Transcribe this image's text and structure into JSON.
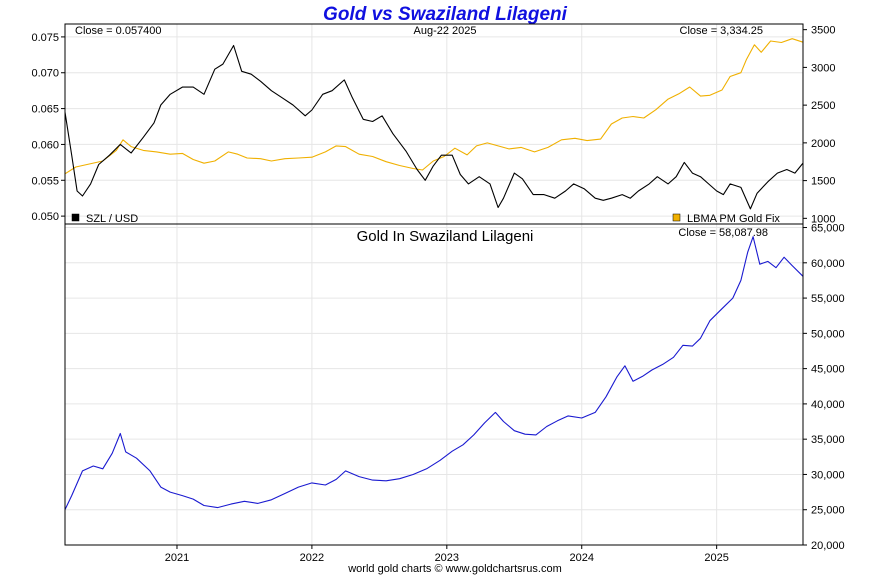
{
  "title": "Gold vs Swaziland Lilageni",
  "footer": "world gold charts © www.goldchartsrus.com",
  "date_label": "Aug-22  2025",
  "colors": {
    "title": "#1010e0",
    "szl": "#000000",
    "gold": "#f0b000",
    "gold_szl": "#1a1ad0"
  },
  "top_panel": {
    "left_close": "Close = 0.057400",
    "right_close": "Close = 3,334.25",
    "legend_left": "SZL / USD",
    "legend_right": "LBMA PM Gold Fix"
  },
  "bottom_panel": {
    "subtitle": "Gold In Swaziland Lilageni",
    "close": "Close = 58,087.98"
  },
  "chart_data": [
    {
      "type": "line",
      "panel": "top",
      "x_ticks": [
        "2021",
        "2022",
        "2023",
        "2024",
        "2025"
      ],
      "x_range": [
        2020.17,
        2025.64
      ],
      "y_left": {
        "ticks": [
          "0.050",
          "0.055",
          "0.060",
          "0.065",
          "0.070",
          "0.075"
        ],
        "range": [
          0.0489,
          0.0768
        ]
      },
      "y_right": {
        "ticks": [
          "1000",
          "1500",
          "2000",
          "2500",
          "3000",
          "3500"
        ],
        "range": [
          925,
          3575
        ]
      },
      "series": [
        {
          "name": "SZL / USD",
          "axis": "left",
          "points": [
            [
              2020.17,
              0.0645
            ],
            [
              2020.22,
              0.0585
            ],
            [
              2020.26,
              0.0535
            ],
            [
              2020.3,
              0.0528
            ],
            [
              2020.36,
              0.0545
            ],
            [
              2020.42,
              0.0572
            ],
            [
              2020.5,
              0.0585
            ],
            [
              2020.58,
              0.06
            ],
            [
              2020.66,
              0.0588
            ],
            [
              2020.75,
              0.061
            ],
            [
              2020.83,
              0.063
            ],
            [
              2020.88,
              0.0655
            ],
            [
              2020.95,
              0.067
            ],
            [
              2021.04,
              0.068
            ],
            [
              2021.12,
              0.068
            ],
            [
              2021.2,
              0.067
            ],
            [
              2021.28,
              0.0705
            ],
            [
              2021.34,
              0.0712
            ],
            [
              2021.42,
              0.0738
            ],
            [
              2021.48,
              0.0702
            ],
            [
              2021.55,
              0.0698
            ],
            [
              2021.62,
              0.0688
            ],
            [
              2021.7,
              0.0675
            ],
            [
              2021.78,
              0.0665
            ],
            [
              2021.86,
              0.0655
            ],
            [
              2021.95,
              0.064
            ],
            [
              2022.0,
              0.0648
            ],
            [
              2022.08,
              0.067
            ],
            [
              2022.15,
              0.0675
            ],
            [
              2022.24,
              0.069
            ],
            [
              2022.3,
              0.0665
            ],
            [
              2022.38,
              0.0635
            ],
            [
              2022.45,
              0.0632
            ],
            [
              2022.52,
              0.064
            ],
            [
              2022.6,
              0.0615
            ],
            [
              2022.7,
              0.059
            ],
            [
              2022.78,
              0.0565
            ],
            [
              2022.84,
              0.055
            ],
            [
              2022.9,
              0.057
            ],
            [
              2022.96,
              0.0585
            ],
            [
              2023.04,
              0.0585
            ],
            [
              2023.1,
              0.0558
            ],
            [
              2023.16,
              0.0545
            ],
            [
              2023.24,
              0.0555
            ],
            [
              2023.32,
              0.0545
            ],
            [
              2023.38,
              0.0512
            ],
            [
              2023.42,
              0.0525
            ],
            [
              2023.5,
              0.056
            ],
            [
              2023.56,
              0.0552
            ],
            [
              2023.64,
              0.053
            ],
            [
              2023.72,
              0.053
            ],
            [
              2023.8,
              0.0525
            ],
            [
              2023.88,
              0.0535
            ],
            [
              2023.94,
              0.0545
            ],
            [
              2024.02,
              0.0538
            ],
            [
              2024.1,
              0.0525
            ],
            [
              2024.16,
              0.0522
            ],
            [
              2024.22,
              0.0525
            ],
            [
              2024.3,
              0.053
            ],
            [
              2024.36,
              0.0525
            ],
            [
              2024.42,
              0.0535
            ],
            [
              2024.5,
              0.0545
            ],
            [
              2024.56,
              0.0555
            ],
            [
              2024.64,
              0.0545
            ],
            [
              2024.7,
              0.0555
            ],
            [
              2024.76,
              0.0575
            ],
            [
              2024.82,
              0.056
            ],
            [
              2024.88,
              0.0555
            ],
            [
              2024.94,
              0.0545
            ],
            [
              2025.0,
              0.0535
            ],
            [
              2025.05,
              0.053
            ],
            [
              2025.1,
              0.0545
            ],
            [
              2025.18,
              0.054
            ],
            [
              2025.25,
              0.051
            ],
            [
              2025.3,
              0.0532
            ],
            [
              2025.38,
              0.0548
            ],
            [
              2025.45,
              0.056
            ],
            [
              2025.52,
              0.0565
            ],
            [
              2025.58,
              0.056
            ],
            [
              2025.64,
              0.0574
            ]
          ]
        },
        {
          "name": "LBMA PM Gold Fix",
          "axis": "right",
          "points": [
            [
              2020.17,
              1590
            ],
            [
              2020.25,
              1680
            ],
            [
              2020.35,
              1720
            ],
            [
              2020.45,
              1760
            ],
            [
              2020.55,
              1900
            ],
            [
              2020.6,
              2040
            ],
            [
              2020.66,
              1950
            ],
            [
              2020.75,
              1900
            ],
            [
              2020.85,
              1880
            ],
            [
              2020.95,
              1850
            ],
            [
              2021.04,
              1860
            ],
            [
              2021.12,
              1780
            ],
            [
              2021.2,
              1730
            ],
            [
              2021.28,
              1760
            ],
            [
              2021.38,
              1880
            ],
            [
              2021.45,
              1850
            ],
            [
              2021.52,
              1800
            ],
            [
              2021.62,
              1790
            ],
            [
              2021.7,
              1760
            ],
            [
              2021.8,
              1790
            ],
            [
              2021.9,
              1800
            ],
            [
              2022.0,
              1810
            ],
            [
              2022.1,
              1880
            ],
            [
              2022.18,
              1960
            ],
            [
              2022.25,
              1950
            ],
            [
              2022.35,
              1850
            ],
            [
              2022.45,
              1820
            ],
            [
              2022.55,
              1750
            ],
            [
              2022.65,
              1700
            ],
            [
              2022.75,
              1660
            ],
            [
              2022.82,
              1640
            ],
            [
              2022.9,
              1760
            ],
            [
              2022.98,
              1820
            ],
            [
              2023.06,
              1930
            ],
            [
              2023.15,
              1840
            ],
            [
              2023.22,
              1960
            ],
            [
              2023.3,
              2000
            ],
            [
              2023.38,
              1960
            ],
            [
              2023.46,
              1920
            ],
            [
              2023.55,
              1940
            ],
            [
              2023.65,
              1880
            ],
            [
              2023.75,
              1940
            ],
            [
              2023.85,
              2040
            ],
            [
              2023.95,
              2060
            ],
            [
              2024.04,
              2030
            ],
            [
              2024.14,
              2050
            ],
            [
              2024.22,
              2250
            ],
            [
              2024.3,
              2330
            ],
            [
              2024.38,
              2350
            ],
            [
              2024.46,
              2330
            ],
            [
              2024.55,
              2440
            ],
            [
              2024.64,
              2580
            ],
            [
              2024.72,
              2650
            ],
            [
              2024.8,
              2740
            ],
            [
              2024.88,
              2620
            ],
            [
              2024.95,
              2630
            ],
            [
              2025.04,
              2700
            ],
            [
              2025.1,
              2880
            ],
            [
              2025.18,
              2930
            ],
            [
              2025.22,
              3100
            ],
            [
              2025.28,
              3300
            ],
            [
              2025.33,
              3200
            ],
            [
              2025.4,
              3350
            ],
            [
              2025.48,
              3330
            ],
            [
              2025.56,
              3380
            ],
            [
              2025.64,
              3334.25
            ]
          ]
        }
      ]
    },
    {
      "type": "line",
      "panel": "bottom",
      "x_ticks": [
        "2021",
        "2022",
        "2023",
        "2024",
        "2025"
      ],
      "x_range": [
        2020.17,
        2025.64
      ],
      "y_right": {
        "ticks": [
          "20,000",
          "25,000",
          "30,000",
          "35,000",
          "40,000",
          "45,000",
          "50,000",
          "55,000",
          "60,000",
          "65,000"
        ],
        "range": [
          20000,
          65500
        ]
      },
      "series": [
        {
          "name": "Gold In Swaziland Lilageni",
          "axis": "right",
          "points": [
            [
              2020.17,
              25000
            ],
            [
              2020.22,
              27000
            ],
            [
              2020.3,
              30500
            ],
            [
              2020.38,
              31200
            ],
            [
              2020.45,
              30800
            ],
            [
              2020.52,
              33000
            ],
            [
              2020.58,
              35800
            ],
            [
              2020.62,
              33200
            ],
            [
              2020.7,
              32300
            ],
            [
              2020.8,
              30500
            ],
            [
              2020.88,
              28200
            ],
            [
              2020.95,
              27500
            ],
            [
              2021.04,
              27000
            ],
            [
              2021.12,
              26500
            ],
            [
              2021.2,
              25600
            ],
            [
              2021.3,
              25300
            ],
            [
              2021.4,
              25800
            ],
            [
              2021.5,
              26200
            ],
            [
              2021.6,
              25900
            ],
            [
              2021.7,
              26400
            ],
            [
              2021.8,
              27300
            ],
            [
              2021.9,
              28200
            ],
            [
              2022.0,
              28800
            ],
            [
              2022.1,
              28500
            ],
            [
              2022.18,
              29300
            ],
            [
              2022.25,
              30500
            ],
            [
              2022.35,
              29700
            ],
            [
              2022.45,
              29200
            ],
            [
              2022.55,
              29100
            ],
            [
              2022.65,
              29400
            ],
            [
              2022.75,
              30000
            ],
            [
              2022.85,
              30800
            ],
            [
              2022.95,
              32000
            ],
            [
              2023.04,
              33300
            ],
            [
              2023.12,
              34200
            ],
            [
              2023.2,
              35600
            ],
            [
              2023.28,
              37300
            ],
            [
              2023.36,
              38800
            ],
            [
              2023.42,
              37500
            ],
            [
              2023.5,
              36200
            ],
            [
              2023.58,
              35700
            ],
            [
              2023.66,
              35600
            ],
            [
              2023.74,
              36800
            ],
            [
              2023.82,
              37600
            ],
            [
              2023.9,
              38300
            ],
            [
              2024.0,
              38000
            ],
            [
              2024.1,
              38800
            ],
            [
              2024.18,
              41000
            ],
            [
              2024.26,
              43800
            ],
            [
              2024.32,
              45400
            ],
            [
              2024.38,
              43200
            ],
            [
              2024.45,
              43900
            ],
            [
              2024.52,
              44800
            ],
            [
              2024.6,
              45600
            ],
            [
              2024.68,
              46600
            ],
            [
              2024.75,
              48300
            ],
            [
              2024.82,
              48200
            ],
            [
              2024.88,
              49300
            ],
            [
              2024.95,
              51800
            ],
            [
              2025.04,
              53500
            ],
            [
              2025.12,
              55000
            ],
            [
              2025.18,
              57500
            ],
            [
              2025.23,
              61500
            ],
            [
              2025.27,
              63700
            ],
            [
              2025.32,
              59800
            ],
            [
              2025.38,
              60200
            ],
            [
              2025.44,
              59300
            ],
            [
              2025.5,
              60800
            ],
            [
              2025.56,
              59600
            ],
            [
              2025.64,
              58088
            ]
          ]
        }
      ]
    }
  ]
}
